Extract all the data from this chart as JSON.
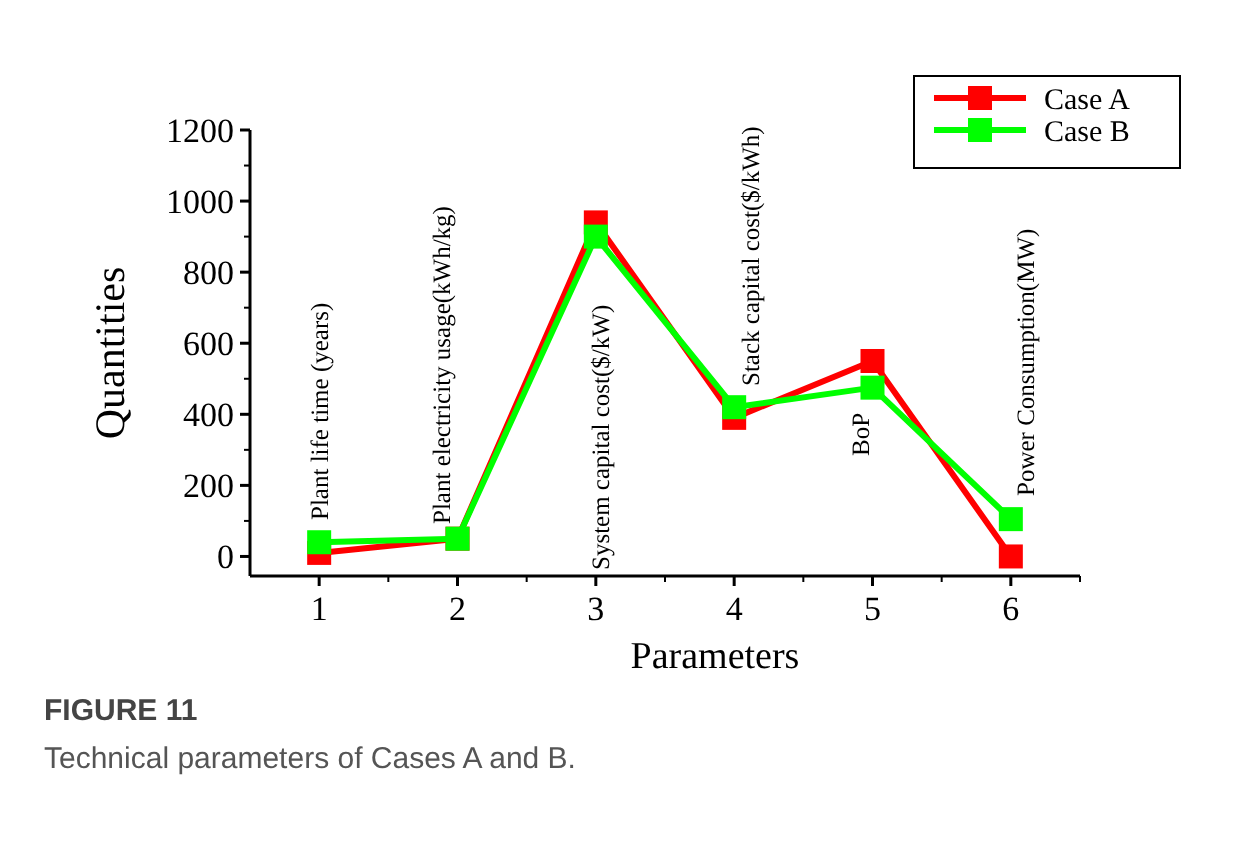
{
  "chart_data": {
    "type": "line",
    "title": "FIGURE 11",
    "subtitle": "Technical parameters of Cases A and B.",
    "xlabel": "Parameters",
    "ylabel": "Quantities",
    "x": [
      1,
      2,
      3,
      4,
      5,
      6
    ],
    "series": [
      {
        "name": "Case A",
        "color": "#ff0000",
        "values": [
          10,
          50,
          940,
          390,
          550,
          0
        ]
      },
      {
        "name": "Case B",
        "color": "#00ff00",
        "values": [
          40,
          50,
          900,
          420,
          475,
          105
        ]
      }
    ],
    "xlim": [
      0.5,
      6.5
    ],
    "xticks": [
      1,
      2,
      3,
      4,
      5,
      6
    ],
    "ylim": [
      -55,
      1200
    ],
    "yticks": [
      0,
      200,
      400,
      600,
      800,
      1000,
      1200
    ],
    "annotations": [
      "Plant life time (years)",
      "Plant electricity usage(kWh/kg)",
      "System capital cost($/kW)",
      "Stack capital cost($/kWh)",
      "BoP",
      "Power Consumption(MW)"
    ],
    "marker": "square",
    "legend": "top right",
    "grid": false
  }
}
